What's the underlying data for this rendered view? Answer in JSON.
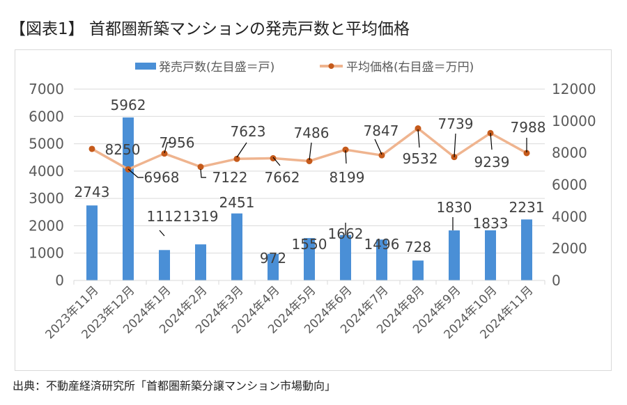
{
  "header": {
    "title": "【図表1】 首都圏新築マンションの発売戸数と平均価格"
  },
  "footer": {
    "source": "出典：不動産経済研究所「首都圏新築分譲マンション市場動向」"
  },
  "colors": {
    "bar": "#4a8fd6",
    "line": "#efb48f",
    "marker": "#c55a1b",
    "grid": "#d9d9d9",
    "leader": "#000000"
  },
  "chart_data": {
    "type": "bar+line",
    "title": "【図表1】 首都圏新築マンションの発売戸数と平均価格",
    "categories": [
      "2023年11月",
      "2023年12月",
      "2024年1月",
      "2024年2月",
      "2024年3月",
      "2024年4月",
      "2024年5月",
      "2024年6月",
      "2024年7月",
      "2024年8月",
      "2024年9月",
      "2024年10月",
      "2024年11月"
    ],
    "series": [
      {
        "name": "発売戸数(左目盛＝戸)",
        "type": "bar",
        "axis": "left",
        "values": [
          2743,
          5962,
          1112,
          1319,
          2451,
          972,
          1550,
          1662,
          1496,
          728,
          1830,
          1833,
          2231
        ]
      },
      {
        "name": "平均価格(右目盛＝万円)",
        "type": "line",
        "axis": "right",
        "values": [
          8250,
          6968,
          7956,
          7122,
          7623,
          7662,
          7486,
          8199,
          7847,
          9532,
          7739,
          9239,
          7988
        ]
      }
    ],
    "y_left": {
      "range": [
        0,
        7000
      ],
      "ticks": [
        "0",
        "1000",
        "2000",
        "3000",
        "4000",
        "5000",
        "6000",
        "7000"
      ]
    },
    "y_right": {
      "range": [
        0,
        12000
      ],
      "ticks": [
        "0",
        "2000",
        "4000",
        "6000",
        "8000",
        "10000",
        "12000"
      ]
    },
    "legend_position": "top",
    "grid": true
  }
}
